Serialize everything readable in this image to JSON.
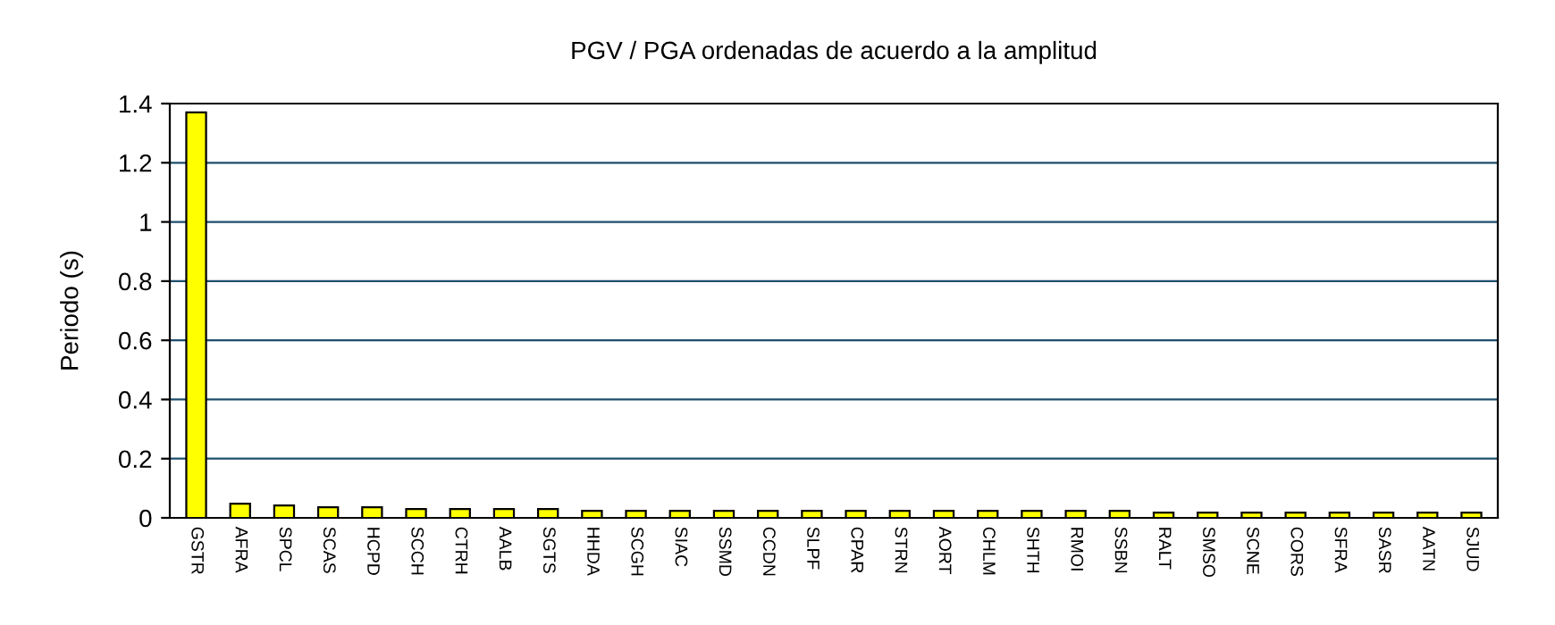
{
  "chart_data": {
    "type": "bar",
    "title": "PGV / PGA ordenadas de acuerdo a la amplitud",
    "ylabel": "Periodo (s)",
    "categories": [
      "GSTR",
      "AFRA",
      "SPCL",
      "SCAS",
      "HCPD",
      "SCCH",
      "CTRH",
      "AALB",
      "SGTS",
      "HHDA",
      "SCGH",
      "SIAC",
      "SSMD",
      "CCDN",
      "SLPF",
      "CPAR",
      "STRN",
      "AORT",
      "CHLM",
      "SHTH",
      "RMOI",
      "SSBN",
      "RALT",
      "SMSO",
      "SCNE",
      "CORS",
      "SFRA",
      "SASR",
      "AATN",
      "SJUD"
    ],
    "values": [
      1.37,
      0.048,
      0.042,
      0.036,
      0.036,
      0.03,
      0.03,
      0.03,
      0.03,
      0.024,
      0.024,
      0.024,
      0.024,
      0.024,
      0.024,
      0.024,
      0.024,
      0.024,
      0.024,
      0.024,
      0.024,
      0.024,
      0.018,
      0.018,
      0.018,
      0.018,
      0.018,
      0.018,
      0.018,
      0.018
    ],
    "color": "#ffff00",
    "ylim": [
      0,
      1.4
    ],
    "yticks": [
      0,
      0.2,
      0.4,
      0.6,
      0.8,
      1,
      1.2,
      1.4
    ],
    "grid": "y"
  }
}
